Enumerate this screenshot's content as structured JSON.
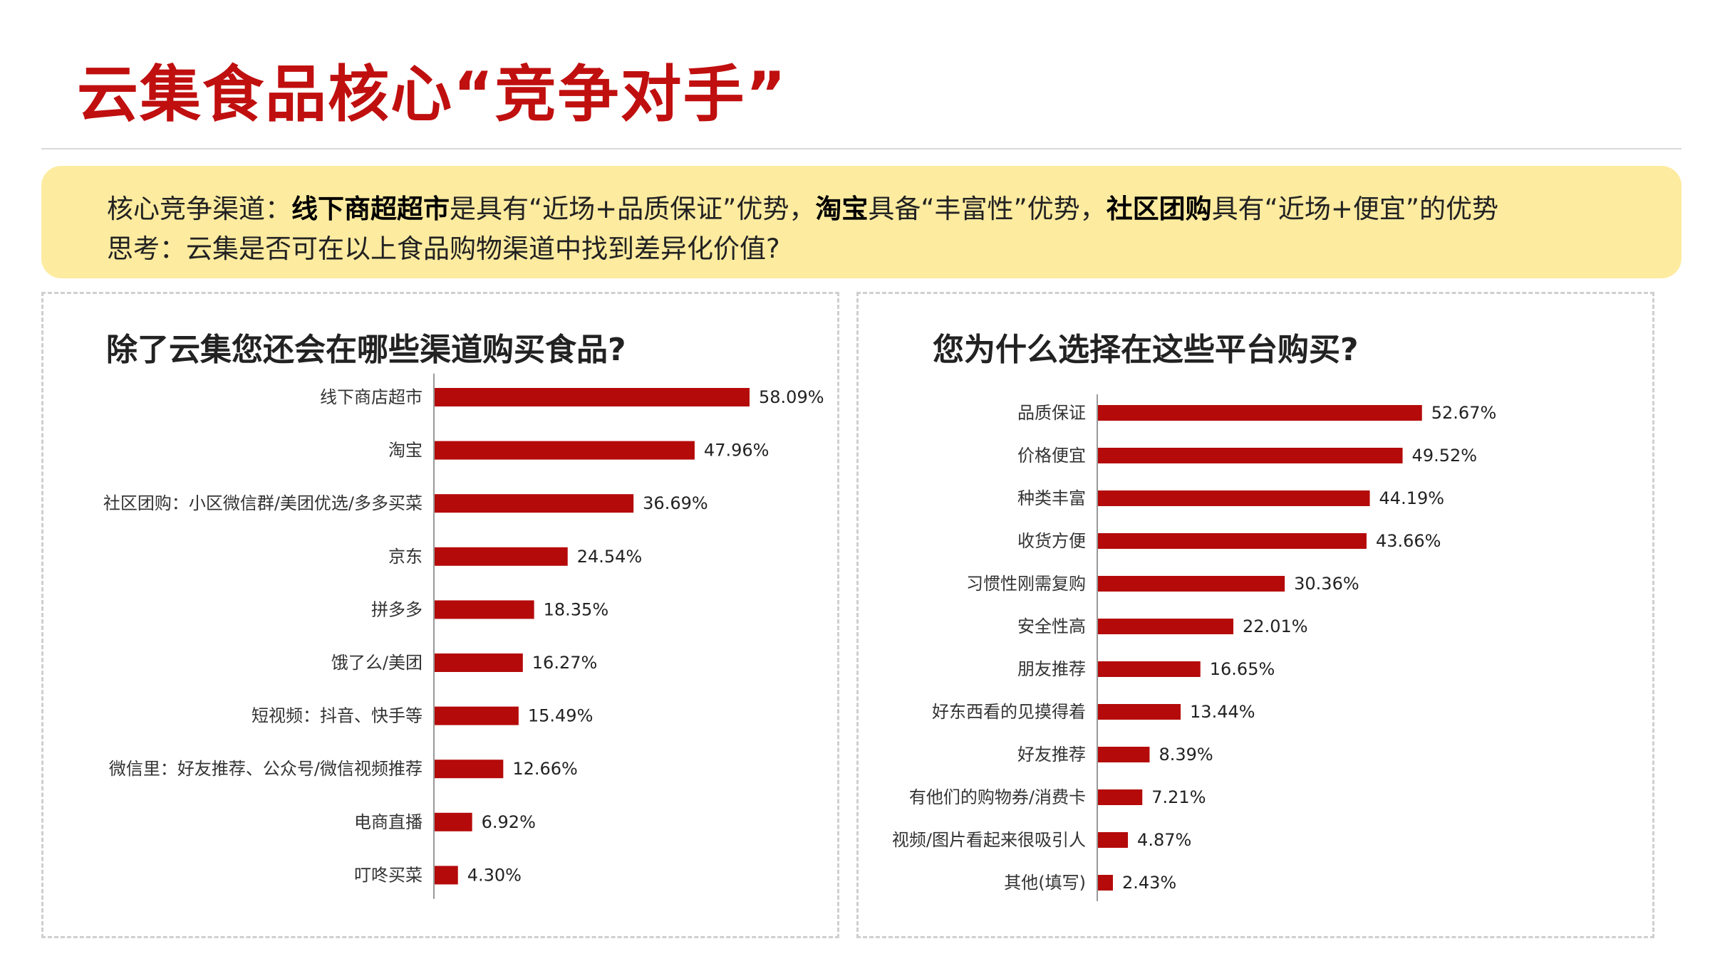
{
  "header": {
    "title": "云集食品核心“竞争对手”"
  },
  "callout": {
    "line1": [
      {
        "text": "核心竞争渠道：",
        "bold": false
      },
      {
        "text": "线下商超超市",
        "bold": true
      },
      {
        "text": "是具有“近场+品质保证”优势，",
        "bold": false
      },
      {
        "text": "淘宝",
        "bold": true
      },
      {
        "text": "具备“丰富性”优势，",
        "bold": false
      },
      {
        "text": "社区团购",
        "bold": true
      },
      {
        "text": "具有“近场+便宜”的优势",
        "bold": false
      }
    ],
    "line2": "思考：云集是否可在以上食品购物渠道中找到差异化价值?"
  },
  "colors": {
    "title": "#c00f0f",
    "bar": "#b50a0a",
    "callout_bg": "#fdeba0",
    "axis": "#999999"
  },
  "chart_data": [
    {
      "type": "bar",
      "orientation": "horizontal",
      "title": "除了云集您还会在哪些渠道购买食品?",
      "categories": [
        "线下商店超市",
        "淘宝",
        "社区团购：小区微信群/美团优选/多多买菜",
        "京东",
        "拼多多",
        "饿了么/美团",
        "短视频：抖音、快手等",
        "微信里：好友推荐、公众号/微信视频推荐",
        "电商直播",
        "叮咚买菜"
      ],
      "values": [
        58.09,
        47.96,
        36.69,
        24.54,
        18.35,
        16.27,
        15.49,
        12.66,
        6.92,
        4.3
      ],
      "value_labels": [
        "58.09%",
        "47.96%",
        "36.69%",
        "24.54%",
        "18.35%",
        "16.27%",
        "15.49%",
        "12.66%",
        "6.92%",
        "4.30%"
      ],
      "xlim": [
        0,
        65
      ]
    },
    {
      "type": "bar",
      "orientation": "horizontal",
      "title": "您为什么选择在这些平台购买?",
      "categories": [
        "品质保证",
        "价格便宜",
        "种类丰富",
        "收货方便",
        "习惯性刚需复购",
        "安全性高",
        "朋友推荐",
        "好东西看的见摸得着",
        "好友推荐",
        "有他们的购物券/消费卡",
        "视频/图片看起来很吸引人",
        "其他(填写)"
      ],
      "values": [
        52.67,
        49.52,
        44.19,
        43.66,
        30.36,
        22.01,
        16.65,
        13.44,
        8.39,
        7.21,
        4.87,
        2.43
      ],
      "value_labels": [
        "52.67%",
        "49.52%",
        "44.19%",
        "43.66%",
        "30.36%",
        "22.01%",
        "16.65%",
        "13.44%",
        "8.39%",
        "7.21%",
        "4.87%",
        "2.43%"
      ],
      "xlim": [
        0,
        60
      ]
    }
  ]
}
